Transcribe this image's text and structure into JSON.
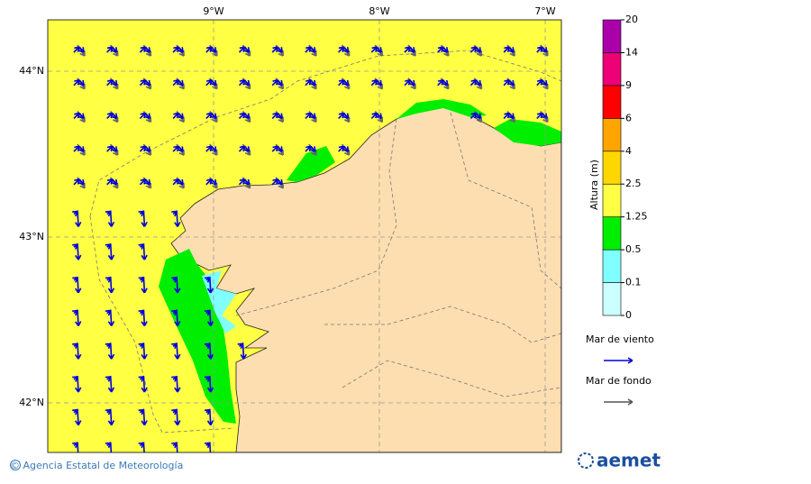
{
  "map": {
    "longitude_labels": [
      "9°W",
      "8°W",
      "7°W"
    ],
    "latitude_labels": [
      "44°N",
      "43°N",
      "42°N"
    ]
  },
  "colorbar": {
    "title": "Altura (m)",
    "levels": [
      {
        "label": "0",
        "color": "#ccffff"
      },
      {
        "label": "0.1",
        "color": "#80ffff"
      },
      {
        "label": "0.5",
        "color": "#00ee00"
      },
      {
        "label": "1.25",
        "color": "#ffff44"
      },
      {
        "label": "2.5",
        "color": "#ffd700"
      },
      {
        "label": "4",
        "color": "#ffa500"
      },
      {
        "label": "6",
        "color": "#ff0000"
      },
      {
        "label": "9",
        "color": "#ee0077"
      },
      {
        "label": "14",
        "color": "#aa00aa"
      },
      {
        "label": "20",
        "color": null
      }
    ]
  },
  "legend": [
    {
      "label": "Mar de viento",
      "color": "#0000dd"
    },
    {
      "label": "Mar de fondo",
      "color": "#555555"
    }
  ],
  "footer": {
    "credit": "© Agencia Estatal de Meteorología",
    "logo": "aemet"
  }
}
